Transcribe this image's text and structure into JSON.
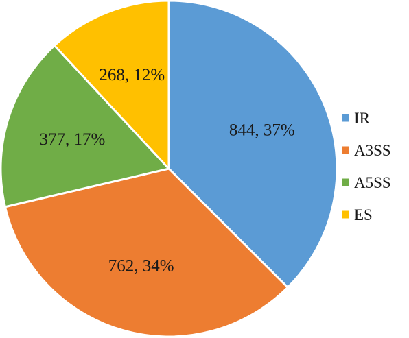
{
  "chart_data": {
    "type": "pie",
    "title": "",
    "categories": [
      "IR",
      "A3SS",
      "A5SS",
      "ES"
    ],
    "values": [
      844,
      762,
      377,
      268
    ],
    "percentages": [
      37,
      34,
      17,
      12
    ],
    "labels": [
      "844, 37%",
      "762, 34%",
      "377, 17%",
      "268, 12%"
    ],
    "colors": [
      "#5B9BD5",
      "#ED7D31",
      "#70AD47",
      "#FFC000"
    ],
    "start_angle": "12 o'clock",
    "direction": "clockwise",
    "legend": {
      "placement": "right",
      "entries": [
        "IR",
        "A3SS",
        "A5SS",
        "ES"
      ]
    }
  }
}
